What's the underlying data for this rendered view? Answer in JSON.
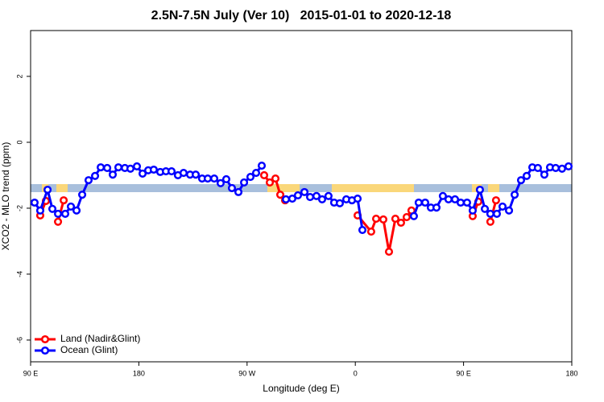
{
  "chart_data": {
    "type": "line",
    "title": "2.5N-7.5N July (Ver 10)   2015-01-01 to 2020-12-18",
    "xlabel": "Longitude (deg E)",
    "ylabel": "XCO2 - MLO trend (ppm)",
    "xlim": [
      90,
      540
    ],
    "ylim": [
      -6.66,
      3.39
    ],
    "xticks": [
      {
        "value": 90,
        "label": "90 E"
      },
      180,
      {
        "value": 270,
        "label": "90 W"
      },
      {
        "value": 360,
        "label": "0"
      },
      {
        "value": 450,
        "label": "90 E"
      },
      {
        "value": 540,
        "label": "180"
      }
    ],
    "yticks": [
      -6,
      -4,
      -2,
      0,
      2
    ],
    "legend": "bottom-left",
    "series": [
      {
        "name": "Land (Nadir&Glint)",
        "color": "#ff0000",
        "x": [
          98.0,
          102.7,
          null,
          112.8,
          117.5,
          null,
          284.2,
          288.9,
          293.6,
          297.6,
          301.6,
          null,
          361.9,
          373.2,
          377.3,
          383.3,
          388.0,
          393.3,
          398.0,
          402.7,
          406.7,
          null,
          457.6,
          462.3,
          null,
          472.3,
          477.0
        ],
        "values": [
          -2.22,
          -1.78,
          null,
          -2.41,
          -1.76,
          null,
          -1.0,
          -1.22,
          -1.1,
          -1.59,
          -1.76,
          null,
          -2.22,
          -2.71,
          -2.32,
          -2.34,
          -3.32,
          -2.32,
          -2.44,
          -2.27,
          -2.07,
          null,
          -2.24,
          -1.8,
          null,
          -2.41,
          -1.76
        ]
      },
      {
        "name": "Ocean (Glint)",
        "color": "#0000ff",
        "x": [
          93.3,
          98.0,
          104.1,
          108.1,
          112.8,
          118.8,
          123.5,
          128.2,
          132.9,
          138.2,
          143.6,
          148.3,
          153.7,
          158.3,
          163.0,
          168.4,
          173.0,
          178.4,
          183.1,
          187.8,
          192.4,
          197.8,
          202.5,
          207.2,
          212.5,
          217.2,
          222.6,
          227.3,
          232.6,
          237.3,
          242.7,
          248.0,
          252.7,
          257.4,
          262.8,
          267.5,
          272.8,
          277.5,
          282.2,
          null,
          302.3,
          307.6,
          312.3,
          317.7,
          322.4,
          327.7,
          332.4,
          337.7,
          342.4,
          347.1,
          352.5,
          357.2,
          361.9,
          365.9,
          null,
          408.7,
          412.7,
          418.1,
          422.8,
          427.5,
          432.8,
          437.5,
          442.9,
          447.6,
          452.9,
          457.6,
          463.6,
          467.7,
          472.3,
          477.7,
          482.4,
          487.8,
          492.5,
          497.8,
          502.5,
          507.2,
          511.8,
          517.2,
          521.9,
          526.6,
          531.9,
          537.3
        ],
        "values": [
          -1.83,
          -2.07,
          -1.44,
          -2.02,
          -2.17,
          -2.17,
          -1.95,
          -2.07,
          -1.59,
          -1.15,
          -1.02,
          -0.76,
          -0.78,
          -0.98,
          -0.76,
          -0.78,
          -0.8,
          -0.73,
          -0.95,
          -0.85,
          -0.83,
          -0.9,
          -0.88,
          -0.88,
          -1.0,
          -0.93,
          -0.98,
          -0.98,
          -1.1,
          -1.1,
          -1.1,
          -1.24,
          -1.12,
          -1.39,
          -1.51,
          -1.22,
          -1.05,
          -0.93,
          -0.71,
          null,
          -1.73,
          -1.71,
          -1.61,
          -1.51,
          -1.66,
          -1.63,
          -1.73,
          -1.63,
          -1.83,
          -1.85,
          -1.73,
          -1.76,
          -1.71,
          -2.66,
          null,
          -2.24,
          -1.83,
          -1.83,
          -1.98,
          -1.98,
          -1.63,
          -1.73,
          -1.73,
          -1.83,
          -1.83,
          -2.07,
          -1.44,
          -2.02,
          -2.17,
          -2.17,
          -1.95,
          -2.07,
          -1.59,
          -1.15,
          -1.02,
          -0.76,
          -0.78,
          -0.98,
          -0.76,
          -0.78,
          -0.8,
          -0.73
        ]
      }
    ]
  }
}
